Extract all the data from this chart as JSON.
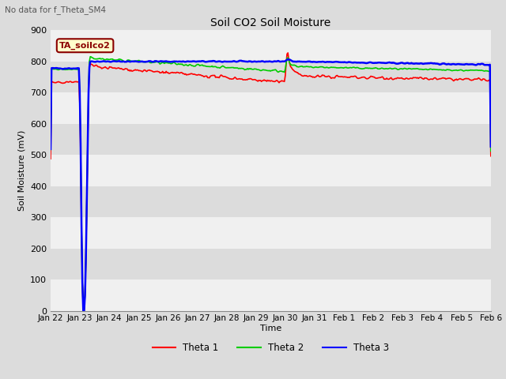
{
  "title": "Soil CO2 Soil Moisture",
  "subtitle": "No data for f_Theta_SM4",
  "ylabel": "Soil Moisture (mV)",
  "xlabel": "Time",
  "ylim": [
    0,
    900
  ],
  "annotation_text": "TA_soilco2",
  "legend_labels": [
    "Theta 1",
    "Theta 2",
    "Theta 3"
  ],
  "legend_colors": [
    "#ff0000",
    "#00cc00",
    "#0000ff"
  ],
  "bg_color": "#dcdcdc",
  "plot_bg_color": "#ffffff",
  "band_color_dark": "#dcdcdc",
  "band_color_light": "#f0f0f0",
  "x_tick_labels": [
    "Jan 22",
    "Jan 23",
    "Jan 24",
    "Jan 25",
    "Jan 26",
    "Jan 27",
    "Jan 28",
    "Jan 29",
    "Jan 30",
    "Jan 31",
    "Feb 1",
    "Feb 2",
    "Feb 3",
    "Feb 4",
    "Feb 5",
    "Feb 6"
  ],
  "num_points": 500,
  "figsize": [
    6.4,
    4.8
  ],
  "dpi": 100
}
